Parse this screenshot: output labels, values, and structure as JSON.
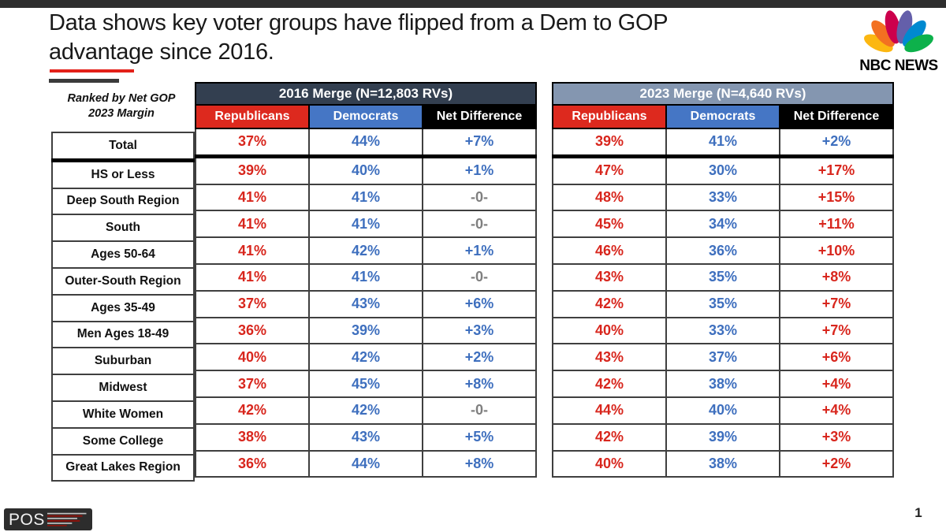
{
  "title": {
    "line1": "Data shows key voter groups have flipped from a Dem to GOP",
    "line2": "advantage since 2016."
  },
  "rank_note": {
    "line1": "Ranked by Net GOP",
    "line2": "2023 Margin"
  },
  "branding": {
    "nbc_label": "NBC NEWS",
    "pos_label": "POS"
  },
  "page_number": "1",
  "colors": {
    "top_bar": "#2E2E2E",
    "accent_red_line": "#E32119",
    "accent_gray_line": "#3A3A3A",
    "header_2016_bg": "#333F50",
    "header_2023_bg": "#8496B0",
    "republicans_header_bg": "#DD291E",
    "democrats_header_bg": "#4576C5",
    "net_difference_header_bg": "#000000",
    "republican_value_text": "#D8261D",
    "democrat_value_text": "#3E6FBE",
    "tie_value_text": "#7F7F7F",
    "nbc_peacock": [
      "#FCB711",
      "#F37021",
      "#CC004C",
      "#645FAA",
      "#0089D0",
      "#0DB14B"
    ]
  },
  "tables": [
    {
      "title": "2016 Merge (N=12,803 RVs)",
      "columns": [
        "Republicans",
        "Democrats",
        "Net Difference"
      ]
    },
    {
      "title": "2023 Merge (N=4,640 RVs)",
      "columns": [
        "Republicans",
        "Democrats",
        "Net Difference"
      ]
    }
  ],
  "rows": [
    {
      "label": "Total",
      "m2016": {
        "rep": "37%",
        "dem": "44%",
        "net": "+7%",
        "net_color": "blue"
      },
      "m2023": {
        "rep": "39%",
        "dem": "41%",
        "net": "+2%",
        "net_color": "blue"
      }
    },
    {
      "label": "HS or Less",
      "m2016": {
        "rep": "39%",
        "dem": "40%",
        "net": "+1%",
        "net_color": "blue"
      },
      "m2023": {
        "rep": "47%",
        "dem": "30%",
        "net": "+17%",
        "net_color": "red"
      }
    },
    {
      "label": "Deep South Region",
      "m2016": {
        "rep": "41%",
        "dem": "41%",
        "net": "-0-",
        "net_color": "gray"
      },
      "m2023": {
        "rep": "48%",
        "dem": "33%",
        "net": "+15%",
        "net_color": "red"
      }
    },
    {
      "label": "South",
      "m2016": {
        "rep": "41%",
        "dem": "41%",
        "net": "-0-",
        "net_color": "gray"
      },
      "m2023": {
        "rep": "45%",
        "dem": "34%",
        "net": "+11%",
        "net_color": "red"
      }
    },
    {
      "label": "Ages 50-64",
      "m2016": {
        "rep": "41%",
        "dem": "42%",
        "net": "+1%",
        "net_color": "blue"
      },
      "m2023": {
        "rep": "46%",
        "dem": "36%",
        "net": "+10%",
        "net_color": "red"
      }
    },
    {
      "label": "Outer-South Region",
      "m2016": {
        "rep": "41%",
        "dem": "41%",
        "net": "-0-",
        "net_color": "gray"
      },
      "m2023": {
        "rep": "43%",
        "dem": "35%",
        "net": "+8%",
        "net_color": "red"
      }
    },
    {
      "label": "Ages 35-49",
      "m2016": {
        "rep": "37%",
        "dem": "43%",
        "net": "+6%",
        "net_color": "blue"
      },
      "m2023": {
        "rep": "42%",
        "dem": "35%",
        "net": "+7%",
        "net_color": "red"
      }
    },
    {
      "label": "Men Ages 18-49",
      "m2016": {
        "rep": "36%",
        "dem": "39%",
        "net": "+3%",
        "net_color": "blue"
      },
      "m2023": {
        "rep": "40%",
        "dem": "33%",
        "net": "+7%",
        "net_color": "red"
      }
    },
    {
      "label": "Suburban",
      "m2016": {
        "rep": "40%",
        "dem": "42%",
        "net": "+2%",
        "net_color": "blue"
      },
      "m2023": {
        "rep": "43%",
        "dem": "37%",
        "net": "+6%",
        "net_color": "red"
      }
    },
    {
      "label": "Midwest",
      "m2016": {
        "rep": "37%",
        "dem": "45%",
        "net": "+8%",
        "net_color": "blue"
      },
      "m2023": {
        "rep": "42%",
        "dem": "38%",
        "net": "+4%",
        "net_color": "red"
      }
    },
    {
      "label": "White Women",
      "m2016": {
        "rep": "42%",
        "dem": "42%",
        "net": "-0-",
        "net_color": "gray"
      },
      "m2023": {
        "rep": "44%",
        "dem": "40%",
        "net": "+4%",
        "net_color": "red"
      }
    },
    {
      "label": "Some College",
      "m2016": {
        "rep": "38%",
        "dem": "43%",
        "net": "+5%",
        "net_color": "blue"
      },
      "m2023": {
        "rep": "42%",
        "dem": "39%",
        "net": "+3%",
        "net_color": "red"
      }
    },
    {
      "label": "Great Lakes Region",
      "m2016": {
        "rep": "36%",
        "dem": "44%",
        "net": "+8%",
        "net_color": "blue"
      },
      "m2023": {
        "rep": "40%",
        "dem": "38%",
        "net": "+2%",
        "net_color": "red"
      }
    }
  ],
  "chart_data": {
    "type": "table",
    "title": "Data shows key voter groups have flipped from a Dem to GOP advantage since 2016.",
    "note": "Ranked by Net GOP 2023 Margin",
    "net_color_meaning": "Net Difference shown in blue = Democratic advantage, red = Republican (GOP) advantage, gray -0- = tie",
    "categories": [
      "Total",
      "HS or Less",
      "Deep South Region",
      "South",
      "Ages 50-64",
      "Outer-South Region",
      "Ages 35-49",
      "Men Ages 18-49",
      "Suburban",
      "Midwest",
      "White Women",
      "Some College",
      "Great Lakes Region"
    ],
    "series": [
      {
        "name": "2016 Merge (N=12,803 RVs) Republicans %",
        "values": [
          37,
          39,
          41,
          41,
          41,
          41,
          37,
          36,
          40,
          37,
          42,
          38,
          36
        ]
      },
      {
        "name": "2016 Merge (N=12,803 RVs) Democrats %",
        "values": [
          44,
          40,
          41,
          41,
          42,
          41,
          43,
          39,
          42,
          45,
          42,
          43,
          44
        ]
      },
      {
        "name": "2016 Merge Net Difference",
        "values": [
          "+7%",
          "+1%",
          "-0-",
          "-0-",
          "+1%",
          "-0-",
          "+6%",
          "+3%",
          "+2%",
          "+8%",
          "-0-",
          "+5%",
          "+8%"
        ]
      },
      {
        "name": "2023 Merge (N=4,640 RVs) Republicans %",
        "values": [
          39,
          47,
          48,
          45,
          46,
          43,
          42,
          40,
          43,
          42,
          44,
          42,
          40
        ]
      },
      {
        "name": "2023 Merge (N=4,640 RVs) Democrats %",
        "values": [
          41,
          30,
          33,
          34,
          36,
          35,
          35,
          33,
          37,
          38,
          40,
          39,
          38
        ]
      },
      {
        "name": "2023 Merge Net Difference",
        "values": [
          "+2%",
          "+17%",
          "+15%",
          "+11%",
          "+10%",
          "+8%",
          "+7%",
          "+7%",
          "+6%",
          "+4%",
          "+4%",
          "+3%",
          "+2%"
        ]
      }
    ]
  }
}
